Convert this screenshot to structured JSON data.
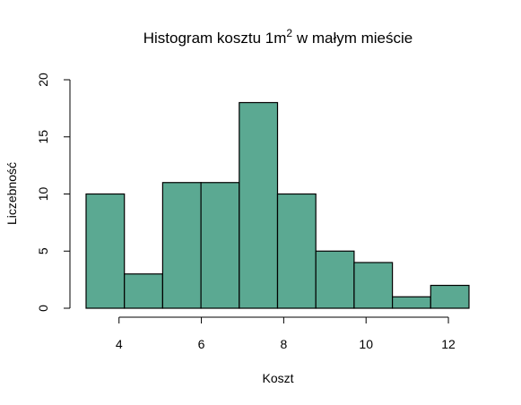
{
  "chart_data": {
    "type": "bar",
    "title": "Histogram kosztu 1m",
    "title_superscript": "2",
    "title_suffix": " w małym mieście",
    "xlabel": "Koszt",
    "ylabel": "Liczebność",
    "bins": [
      {
        "from": 3.2,
        "to": 4.13,
        "count": 10
      },
      {
        "from": 4.13,
        "to": 5.06,
        "count": 3
      },
      {
        "from": 5.06,
        "to": 5.99,
        "count": 11
      },
      {
        "from": 5.99,
        "to": 6.92,
        "count": 11
      },
      {
        "from": 6.92,
        "to": 7.85,
        "count": 18
      },
      {
        "from": 7.85,
        "to": 8.78,
        "count": 10
      },
      {
        "from": 8.78,
        "to": 9.71,
        "count": 5
      },
      {
        "from": 9.71,
        "to": 10.64,
        "count": 4
      },
      {
        "from": 10.64,
        "to": 11.57,
        "count": 1
      },
      {
        "from": 11.57,
        "to": 12.5,
        "count": 2
      }
    ],
    "xticks": [
      4,
      6,
      8,
      10,
      12
    ],
    "yticks": [
      0,
      5,
      10,
      15,
      20
    ],
    "xlim": [
      3.2,
      12.5
    ],
    "ylim": [
      0,
      20
    ],
    "grid": false,
    "bar_color": "#5ba992",
    "edge_color": "#000000"
  }
}
